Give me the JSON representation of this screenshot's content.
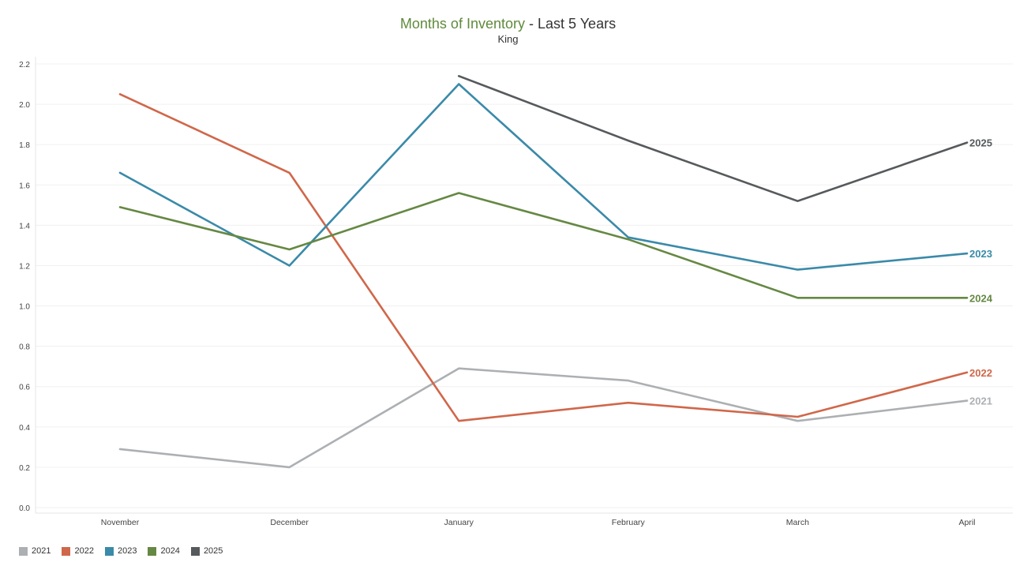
{
  "chart_data": {
    "type": "line",
    "title_main": "Months of Inventory",
    "title_suffix": " - Last 5 Years",
    "subtitle": "King",
    "categories": [
      "November",
      "December",
      "January",
      "February",
      "March",
      "April"
    ],
    "ylim": [
      0,
      2.2
    ],
    "yticks": [
      "0.0",
      "0.2",
      "0.4",
      "0.6",
      "0.8",
      "1.0",
      "1.2",
      "1.4",
      "1.6",
      "1.8",
      "2.0",
      "2.2"
    ],
    "grid": true,
    "legend_position": "bottom-left",
    "series": [
      {
        "name": "2021",
        "color": "#adb0b3",
        "values": [
          0.29,
          0.2,
          0.69,
          0.63,
          0.43,
          0.53
        ],
        "end_label": "2021"
      },
      {
        "name": "2022",
        "color": "#d0674a",
        "values": [
          2.05,
          1.66,
          0.43,
          0.52,
          0.45,
          0.67
        ],
        "end_label": "2022"
      },
      {
        "name": "2023",
        "color": "#3a8aa9",
        "values": [
          1.66,
          1.2,
          2.1,
          1.34,
          1.18,
          1.26
        ],
        "end_label": "2023"
      },
      {
        "name": "2024",
        "color": "#658843",
        "values": [
          1.49,
          1.28,
          1.56,
          1.33,
          1.04,
          1.04
        ],
        "end_label": "2024"
      },
      {
        "name": "2025",
        "color": "#565a5c",
        "values": [
          null,
          null,
          2.14,
          1.82,
          1.52,
          1.81
        ],
        "end_label": "2025"
      }
    ]
  }
}
